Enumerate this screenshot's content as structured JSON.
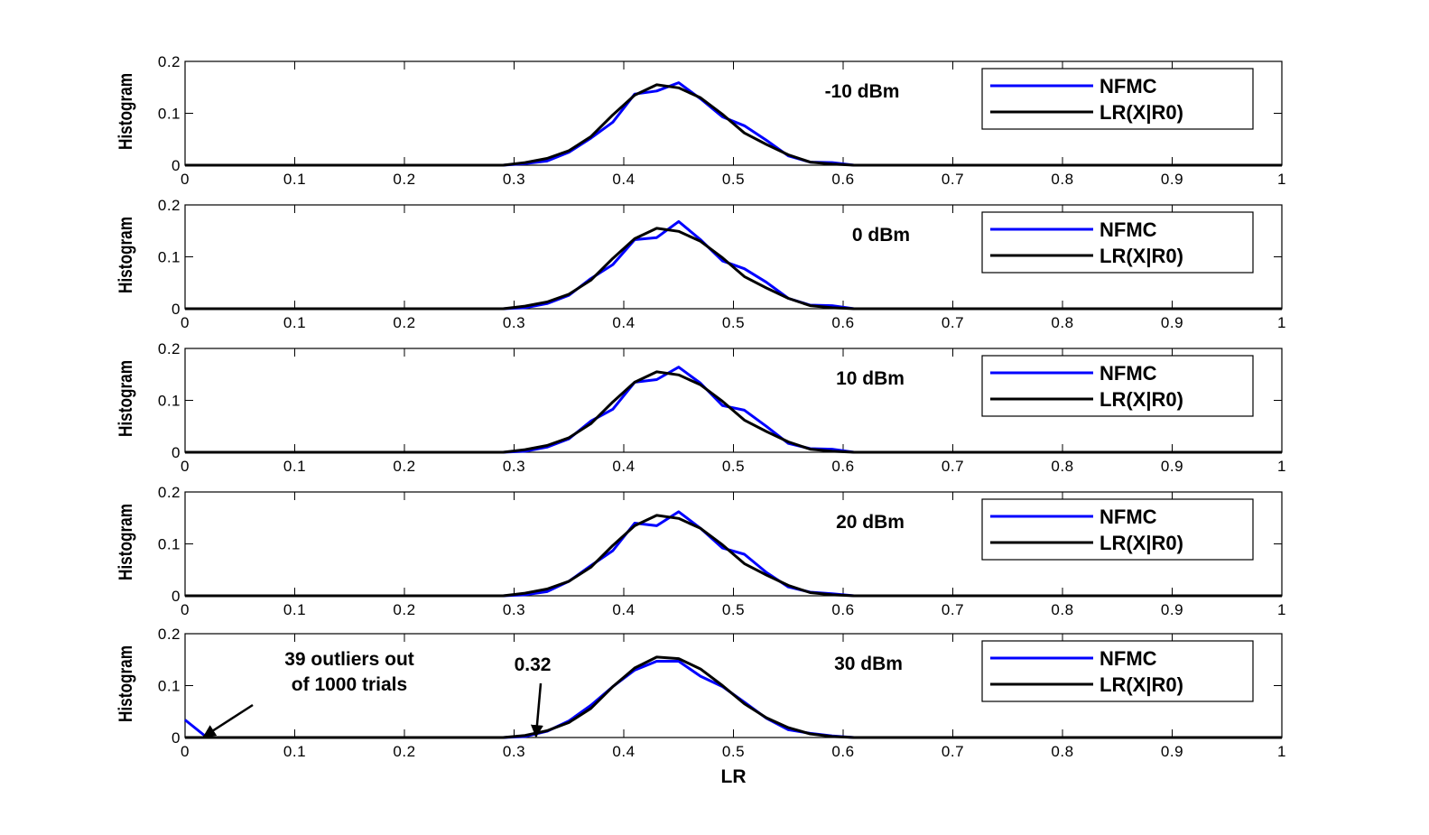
{
  "chart_data": [
    {
      "type": "line",
      "annotation": "-10 dBm",
      "ylabel": "Histogram",
      "xlabel": "",
      "xlim": [
        0,
        1
      ],
      "ylim": [
        0,
        0.2
      ],
      "xticks": [
        "0",
        "0.1",
        "0.2",
        "0.3",
        "0.4",
        "0.5",
        "0.6",
        "0.7",
        "0.8",
        "0.9",
        "1"
      ],
      "yticks": [
        "0",
        "0.1",
        "0.2"
      ],
      "legend": {
        "position": "top-right",
        "entries": [
          "NFMC",
          "LR(X|R0)"
        ]
      },
      "series": [
        {
          "name": "NFMC",
          "color": "#0000ff",
          "x": [
            0,
            0.29,
            0.31,
            0.33,
            0.35,
            0.37,
            0.39,
            0.41,
            0.43,
            0.45,
            0.47,
            0.49,
            0.51,
            0.53,
            0.55,
            0.57,
            0.59,
            0.61,
            1
          ],
          "y": [
            0,
            0,
            0.003,
            0.008,
            0.025,
            0.052,
            0.083,
            0.137,
            0.143,
            0.159,
            0.128,
            0.093,
            0.076,
            0.048,
            0.018,
            0.006,
            0.005,
            0,
            0
          ]
        },
        {
          "name": "LR(X|R0)",
          "color": "#000000",
          "x": [
            0,
            0.29,
            0.31,
            0.33,
            0.35,
            0.37,
            0.39,
            0.41,
            0.43,
            0.45,
            0.47,
            0.49,
            0.51,
            0.53,
            0.55,
            0.57,
            0.59,
            0.61,
            1
          ],
          "y": [
            0,
            0,
            0.005,
            0.013,
            0.028,
            0.055,
            0.097,
            0.135,
            0.155,
            0.149,
            0.13,
            0.098,
            0.062,
            0.04,
            0.02,
            0.006,
            0.002,
            0,
            0
          ]
        }
      ]
    },
    {
      "type": "line",
      "annotation": "0 dBm",
      "ylabel": "Histogram",
      "xlabel": "",
      "xlim": [
        0,
        1
      ],
      "ylim": [
        0,
        0.2
      ],
      "xticks": [
        "0",
        "0.1",
        "0.2",
        "0.3",
        "0.4",
        "0.5",
        "0.6",
        "0.7",
        "0.8",
        "0.9",
        "1"
      ],
      "yticks": [
        "0",
        "0.1",
        "0.2"
      ],
      "legend": {
        "position": "top-right",
        "entries": [
          "NFMC",
          "LR(X|R0)"
        ]
      },
      "series": [
        {
          "name": "NFMC",
          "color": "#0000ff",
          "x": [
            0,
            0.29,
            0.31,
            0.33,
            0.35,
            0.37,
            0.39,
            0.41,
            0.43,
            0.45,
            0.47,
            0.49,
            0.51,
            0.53,
            0.55,
            0.57,
            0.59,
            0.61,
            1
          ],
          "y": [
            0,
            0,
            0.002,
            0.01,
            0.026,
            0.058,
            0.085,
            0.133,
            0.137,
            0.168,
            0.133,
            0.092,
            0.077,
            0.051,
            0.02,
            0.007,
            0.006,
            0,
            0
          ]
        },
        {
          "name": "LR(X|R0)",
          "color": "#000000",
          "x": [
            0,
            0.29,
            0.31,
            0.33,
            0.35,
            0.37,
            0.39,
            0.41,
            0.43,
            0.45,
            0.47,
            0.49,
            0.51,
            0.53,
            0.55,
            0.57,
            0.59,
            0.61,
            1
          ],
          "y": [
            0,
            0,
            0.005,
            0.013,
            0.028,
            0.055,
            0.097,
            0.135,
            0.155,
            0.149,
            0.13,
            0.098,
            0.062,
            0.04,
            0.02,
            0.006,
            0.002,
            0,
            0
          ]
        }
      ]
    },
    {
      "type": "line",
      "annotation": "10 dBm",
      "ylabel": "Histogram",
      "xlabel": "",
      "xlim": [
        0,
        1
      ],
      "ylim": [
        0,
        0.2
      ],
      "xticks": [
        "0",
        "0.1",
        "0.2",
        "0.3",
        "0.4",
        "0.5",
        "0.6",
        "0.7",
        "0.8",
        "0.9",
        "1"
      ],
      "yticks": [
        "0",
        "0.1",
        "0.2"
      ],
      "legend": {
        "position": "top-right",
        "entries": [
          "NFMC",
          "LR(X|R0)"
        ]
      },
      "series": [
        {
          "name": "NFMC",
          "color": "#0000ff",
          "x": [
            0,
            0.29,
            0.31,
            0.33,
            0.35,
            0.37,
            0.39,
            0.41,
            0.43,
            0.45,
            0.47,
            0.49,
            0.51,
            0.53,
            0.55,
            0.57,
            0.59,
            0.61,
            1
          ],
          "y": [
            0,
            0,
            0.002,
            0.01,
            0.026,
            0.06,
            0.083,
            0.135,
            0.14,
            0.164,
            0.133,
            0.09,
            0.081,
            0.05,
            0.017,
            0.007,
            0.006,
            0,
            0
          ]
        },
        {
          "name": "LR(X|R0)",
          "color": "#000000",
          "x": [
            0,
            0.29,
            0.31,
            0.33,
            0.35,
            0.37,
            0.39,
            0.41,
            0.43,
            0.45,
            0.47,
            0.49,
            0.51,
            0.53,
            0.55,
            0.57,
            0.59,
            0.61,
            1
          ],
          "y": [
            0,
            0,
            0.005,
            0.013,
            0.028,
            0.055,
            0.097,
            0.135,
            0.155,
            0.149,
            0.13,
            0.098,
            0.062,
            0.04,
            0.02,
            0.006,
            0.002,
            0,
            0
          ]
        }
      ]
    },
    {
      "type": "line",
      "annotation": "20 dBm",
      "ylabel": "Histogram",
      "xlabel": "",
      "xlim": [
        0,
        1
      ],
      "ylim": [
        0,
        0.2
      ],
      "xticks": [
        "0",
        "0.1",
        "0.2",
        "0.3",
        "0.4",
        "0.5",
        "0.6",
        "0.7",
        "0.8",
        "0.9",
        "1"
      ],
      "yticks": [
        "0",
        "0.1",
        "0.2"
      ],
      "legend": {
        "position": "top-right",
        "entries": [
          "NFMC",
          "LR(X|R0)"
        ]
      },
      "series": [
        {
          "name": "NFMC",
          "color": "#0000ff",
          "x": [
            0,
            0.29,
            0.31,
            0.33,
            0.35,
            0.37,
            0.39,
            0.41,
            0.43,
            0.45,
            0.47,
            0.49,
            0.51,
            0.53,
            0.55,
            0.57,
            0.59,
            0.61,
            1
          ],
          "y": [
            0,
            0,
            0.002,
            0.008,
            0.028,
            0.058,
            0.087,
            0.14,
            0.135,
            0.162,
            0.13,
            0.092,
            0.08,
            0.045,
            0.017,
            0.007,
            0.004,
            0,
            0
          ]
        },
        {
          "name": "LR(X|R0)",
          "color": "#000000",
          "x": [
            0,
            0.29,
            0.31,
            0.33,
            0.35,
            0.37,
            0.39,
            0.41,
            0.43,
            0.45,
            0.47,
            0.49,
            0.51,
            0.53,
            0.55,
            0.57,
            0.59,
            0.61,
            1
          ],
          "y": [
            0,
            0,
            0.005,
            0.013,
            0.028,
            0.055,
            0.097,
            0.135,
            0.155,
            0.149,
            0.13,
            0.098,
            0.062,
            0.04,
            0.02,
            0.006,
            0.002,
            0,
            0
          ]
        }
      ]
    },
    {
      "type": "line",
      "annotation": "30 dBm",
      "ylabel": "Histogram",
      "xlabel": "LR",
      "xlim": [
        0,
        1
      ],
      "ylim": [
        0,
        0.2
      ],
      "xticks": [
        "0",
        "0.1",
        "0.2",
        "0.3",
        "0.4",
        "0.5",
        "0.6",
        "0.7",
        "0.8",
        "0.9",
        "1"
      ],
      "yticks": [
        "0",
        "0.1",
        "0.2"
      ],
      "legend": {
        "position": "top-right",
        "entries": [
          "NFMC",
          "LR(X|R0)"
        ]
      },
      "notes": [
        {
          "text_lines": [
            "39 outliers out",
            "of 1000 trials"
          ],
          "target": [
            0.017,
            0
          ]
        },
        {
          "text_lines": [
            "0.32"
          ],
          "target": [
            0.32,
            0
          ]
        }
      ],
      "series": [
        {
          "name": "NFMC",
          "color": "#0000ff",
          "x": [
            0,
            0.02,
            0.29,
            0.31,
            0.33,
            0.35,
            0.37,
            0.39,
            0.41,
            0.43,
            0.45,
            0.47,
            0.49,
            0.51,
            0.53,
            0.55,
            0.57,
            0.59,
            0.61,
            1
          ],
          "y": [
            0.034,
            0,
            0,
            0.002,
            0.012,
            0.032,
            0.062,
            0.098,
            0.13,
            0.147,
            0.147,
            0.118,
            0.098,
            0.068,
            0.037,
            0.015,
            0.008,
            0.003,
            0,
            0
          ]
        },
        {
          "name": "LR(X|R0)",
          "color": "#000000",
          "x": [
            0,
            0.29,
            0.31,
            0.33,
            0.35,
            0.37,
            0.39,
            0.41,
            0.43,
            0.45,
            0.47,
            0.49,
            0.51,
            0.53,
            0.55,
            0.57,
            0.59,
            0.61,
            1
          ],
          "y": [
            0,
            0,
            0.004,
            0.013,
            0.029,
            0.056,
            0.098,
            0.134,
            0.155,
            0.152,
            0.132,
            0.1,
            0.065,
            0.038,
            0.019,
            0.007,
            0.002,
            0,
            0
          ]
        }
      ]
    }
  ]
}
